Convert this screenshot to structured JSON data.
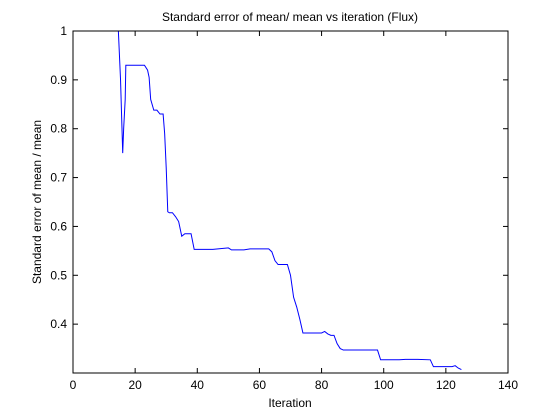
{
  "chart_data": {
    "type": "line",
    "title": "Standard error of mean/ mean vs iteration (Flux)",
    "xlabel": "Iteration",
    "ylabel": "Standard error of mean / mean",
    "xlim": [
      0,
      140
    ],
    "ylim": [
      0.3,
      1.0
    ],
    "xticks": [
      0,
      20,
      40,
      60,
      80,
      100,
      120,
      140
    ],
    "yticks": [
      0.4,
      0.5,
      0.6,
      0.7,
      0.8,
      0.9,
      1
    ],
    "ytick_labels": [
      "0.4",
      "0.5",
      "0.6",
      "0.7",
      "0.8",
      "0.9",
      "1"
    ],
    "grid": false,
    "line_color": "#0000ff",
    "series": [
      {
        "x": [
          14.6,
          15.3,
          16.0,
          16.3,
          16.8,
          17.0,
          20,
          22,
          23,
          24,
          24.5,
          25,
          26,
          27,
          28,
          29,
          29.5,
          30,
          30.5,
          31,
          32,
          33,
          34,
          35,
          36,
          37,
          38,
          39,
          40,
          45,
          50,
          51,
          55,
          57,
          60,
          63,
          64,
          65,
          66,
          67,
          68,
          69,
          70,
          71,
          72,
          73,
          74,
          75,
          76,
          80,
          81,
          82,
          83,
          84,
          85,
          86,
          87,
          88,
          90,
          95,
          98,
          99,
          100,
          105,
          107,
          110,
          111,
          115,
          116,
          120,
          121,
          122,
          123,
          124,
          125
        ],
        "y": [
          1.0,
          0.9,
          0.75,
          0.8,
          0.86,
          0.93,
          0.93,
          0.93,
          0.93,
          0.92,
          0.905,
          0.86,
          0.838,
          0.838,
          0.83,
          0.83,
          0.79,
          0.72,
          0.63,
          0.628,
          0.628,
          0.62,
          0.61,
          0.58,
          0.585,
          0.585,
          0.585,
          0.553,
          0.553,
          0.553,
          0.556,
          0.552,
          0.552,
          0.554,
          0.554,
          0.554,
          0.548,
          0.53,
          0.522,
          0.522,
          0.522,
          0.522,
          0.5,
          0.455,
          0.435,
          0.41,
          0.382,
          0.382,
          0.382,
          0.382,
          0.385,
          0.38,
          0.377,
          0.377,
          0.36,
          0.35,
          0.347,
          0.347,
          0.347,
          0.347,
          0.347,
          0.327,
          0.327,
          0.327,
          0.328,
          0.328,
          0.328,
          0.327,
          0.313,
          0.313,
          0.313,
          0.313,
          0.315,
          0.31,
          0.307
        ]
      }
    ]
  }
}
